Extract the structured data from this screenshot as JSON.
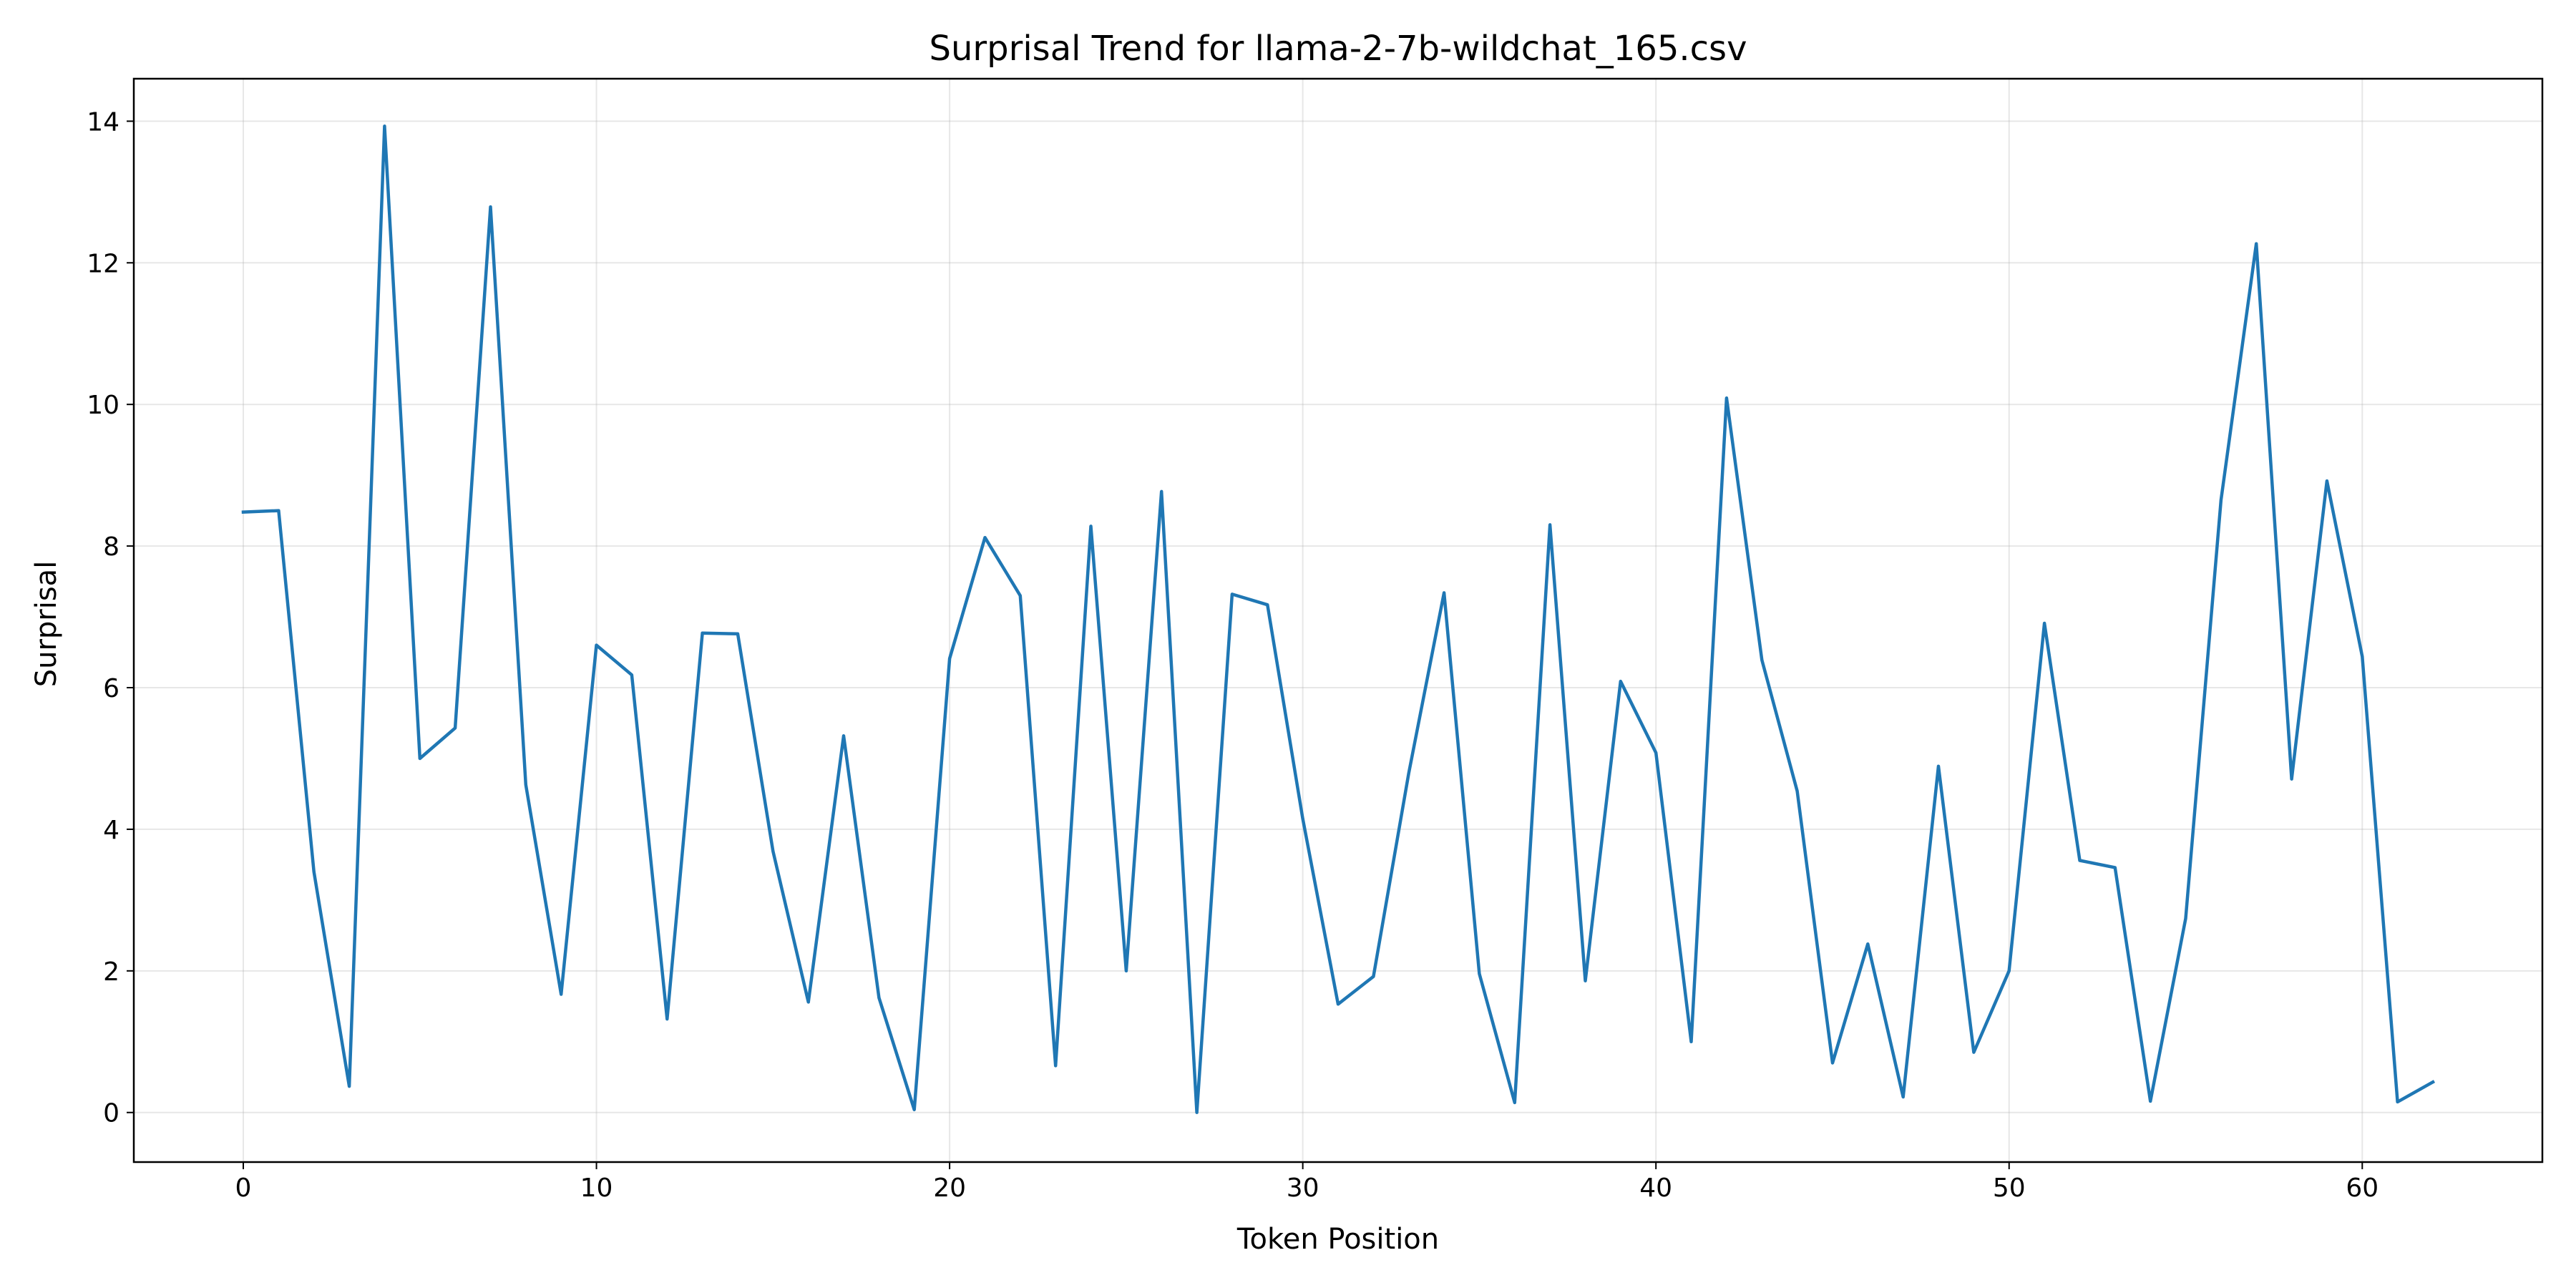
{
  "chart_data": {
    "type": "line",
    "title": "Surprisal Trend for llama-2-7b-wildchat_165.csv",
    "xlabel": "Token Position",
    "ylabel": "Surprisal",
    "xlim": [
      -3.1,
      65.1
    ],
    "ylim": [
      -0.7,
      14.6
    ],
    "xticks": [
      0,
      10,
      20,
      30,
      40,
      50,
      60
    ],
    "yticks": [
      0,
      2,
      4,
      6,
      8,
      10,
      12,
      14
    ],
    "grid": true,
    "color": "#1f77b4",
    "series": [
      {
        "x": [
          0,
          1,
          2,
          3,
          4,
          5,
          6,
          7,
          8,
          9,
          10,
          11,
          12,
          13,
          14,
          15,
          16,
          17,
          18,
          19,
          20,
          21,
          22,
          23,
          24,
          25,
          26,
          27,
          28,
          29,
          30,
          31,
          32,
          33,
          34,
          35,
          36,
          37,
          38,
          39,
          40,
          41,
          42,
          43,
          44,
          45,
          46,
          47,
          48,
          49,
          50,
          51,
          52,
          53,
          54,
          55,
          56,
          57,
          58,
          59,
          60,
          61,
          62
        ],
        "y": [
          8.48,
          8.5,
          3.4,
          0.37,
          13.93,
          5.0,
          5.43,
          12.79,
          4.63,
          1.67,
          6.6,
          6.18,
          1.32,
          6.77,
          6.76,
          3.69,
          1.56,
          5.32,
          1.62,
          0.04,
          6.41,
          8.12,
          7.3,
          0.66,
          8.28,
          2.0,
          8.77,
          0.0,
          7.32,
          7.17,
          4.15,
          1.53,
          1.92,
          4.79,
          7.34,
          1.96,
          0.14,
          8.3,
          1.86,
          6.09,
          5.08,
          1.0,
          10.09,
          6.39,
          4.54,
          0.7,
          2.38,
          0.22,
          4.89,
          0.85,
          2.0,
          6.91,
          3.56,
          3.46,
          0.16,
          2.74,
          8.65,
          12.27,
          4.71,
          8.92,
          6.44,
          0.15,
          0.43
        ]
      }
    ]
  }
}
